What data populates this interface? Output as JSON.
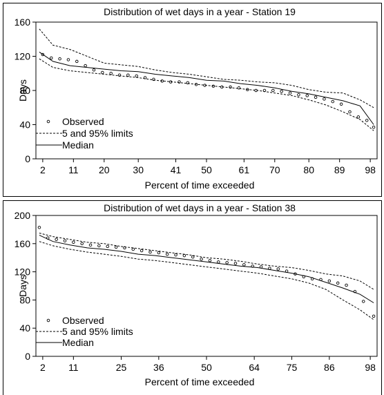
{
  "chart_data": [
    {
      "type": "line",
      "title": "Distribution of wet days in a year - Station 19",
      "xlabel": "Percent of time exceeded",
      "ylabel": "Days",
      "xlim": [
        0,
        100
      ],
      "ylim": [
        0,
        160
      ],
      "x_ticks": [
        2,
        11,
        20,
        30,
        41,
        50,
        61,
        70,
        80,
        89,
        98
      ],
      "y_ticks": [
        0,
        40,
        80,
        120,
        160
      ],
      "grid": false,
      "legend": {
        "position": "bottom-left"
      },
      "series": [
        {
          "name": "Observed",
          "style": "points",
          "x": [
            2,
            4.5,
            7,
            9.5,
            12,
            14.5,
            17,
            19.5,
            22,
            24.5,
            27,
            29.5,
            32,
            34.5,
            37,
            39.5,
            42,
            44.5,
            47,
            49.5,
            52,
            54.5,
            57,
            59.5,
            62,
            64.5,
            67,
            69.5,
            72,
            74.5,
            77,
            79.5,
            82,
            84.5,
            87,
            89.5,
            92,
            94.5,
            97,
            99
          ],
          "y": [
            122,
            118,
            117,
            116,
            114,
            109,
            104,
            101,
            100,
            98,
            98,
            97,
            95,
            93,
            91,
            90,
            90,
            89,
            87,
            86,
            85,
            84,
            84,
            83,
            81,
            80,
            80,
            80,
            79,
            77,
            75,
            74,
            72,
            70,
            67,
            64,
            55,
            49,
            45,
            37
          ]
        },
        {
          "name": "5 and 95% limits",
          "style": "dashed",
          "x": [
            1,
            5,
            10,
            15,
            20,
            25,
            30,
            35,
            40,
            45,
            50,
            55,
            60,
            65,
            70,
            75,
            80,
            85,
            90,
            95,
            99
          ],
          "y": [
            152,
            133,
            128,
            120,
            112,
            110,
            108,
            104,
            101,
            99,
            96,
            93,
            92,
            90,
            89,
            86,
            81,
            78,
            77,
            69,
            60
          ]
        },
        {
          "name": "",
          "style": "dashed",
          "x": [
            1,
            5,
            10,
            15,
            20,
            25,
            30,
            35,
            40,
            45,
            50,
            55,
            60,
            65,
            70,
            75,
            80,
            85,
            90,
            95,
            99
          ],
          "y": [
            117,
            107,
            103,
            101,
            99,
            97,
            95,
            92,
            90,
            88,
            86,
            84,
            82,
            80,
            77,
            74,
            69,
            63,
            55,
            46,
            33
          ]
        },
        {
          "name": "Median",
          "style": "solid",
          "x": [
            1,
            5,
            10,
            15,
            20,
            25,
            30,
            35,
            40,
            45,
            50,
            55,
            60,
            65,
            70,
            75,
            80,
            85,
            90,
            95,
            99
          ],
          "y": [
            125,
            114,
            109,
            107,
            105,
            103,
            102,
            99,
            97,
            95,
            92,
            91,
            88,
            86,
            83,
            79,
            76,
            72,
            68,
            62,
            40
          ]
        }
      ]
    },
    {
      "type": "line",
      "title": "Distribution of wet days in a year - Station 38",
      "xlabel": "Percent of time exceeded",
      "ylabel": "Days",
      "xlim": [
        0,
        100
      ],
      "ylim": [
        0,
        200
      ],
      "x_ticks": [
        2,
        11,
        25,
        36,
        50,
        64,
        75,
        86,
        98
      ],
      "y_ticks": [
        0,
        40,
        80,
        120,
        160,
        200
      ],
      "grid": false,
      "legend": {
        "position": "bottom-left"
      },
      "series": [
        {
          "name": "Observed",
          "style": "points",
          "x": [
            1,
            3.5,
            6,
            8.5,
            11,
            13.5,
            16,
            18.5,
            21,
            23.5,
            26,
            28.5,
            31,
            33.5,
            36,
            38.5,
            41,
            43.5,
            46,
            48.5,
            51,
            53.5,
            56,
            58.5,
            61,
            63.5,
            66,
            68.5,
            71,
            73.5,
            76,
            78.5,
            81,
            83.5,
            86,
            88.5,
            91,
            93.5,
            96,
            99
          ],
          "y": [
            183,
            168,
            166,
            164,
            162,
            160,
            158,
            157,
            156,
            155,
            154,
            152,
            150,
            148,
            147,
            145,
            144,
            143,
            141,
            138,
            136,
            134,
            133,
            132,
            130,
            128,
            127,
            125,
            124,
            121,
            117,
            113,
            110,
            109,
            107,
            104,
            101,
            92,
            78,
            57
          ]
        },
        {
          "name": "5 and 95% limits",
          "style": "dashed",
          "x": [
            1,
            5,
            10,
            15,
            20,
            25,
            30,
            35,
            40,
            45,
            50,
            55,
            60,
            65,
            70,
            75,
            80,
            85,
            90,
            95,
            99
          ],
          "y": [
            175,
            170,
            166,
            162,
            160,
            156,
            153,
            150,
            147,
            144,
            140,
            138,
            135,
            131,
            128,
            126,
            122,
            117,
            114,
            107,
            95
          ]
        },
        {
          "name": "",
          "style": "dashed",
          "x": [
            1,
            5,
            10,
            15,
            20,
            25,
            30,
            35,
            40,
            45,
            50,
            55,
            60,
            65,
            70,
            75,
            80,
            85,
            90,
            95,
            99
          ],
          "y": [
            163,
            157,
            152,
            148,
            145,
            142,
            138,
            136,
            133,
            130,
            127,
            124,
            121,
            118,
            114,
            110,
            104,
            95,
            80,
            66,
            52
          ]
        },
        {
          "name": "Median",
          "style": "solid",
          "x": [
            1,
            5,
            10,
            15,
            20,
            25,
            30,
            35,
            40,
            45,
            50,
            55,
            60,
            65,
            70,
            75,
            80,
            85,
            90,
            95,
            99
          ],
          "y": [
            172,
            163,
            158,
            154,
            152,
            149,
            145,
            143,
            140,
            137,
            134,
            131,
            128,
            126,
            122,
            118,
            113,
            105,
            97,
            88,
            76
          ]
        }
      ]
    }
  ]
}
